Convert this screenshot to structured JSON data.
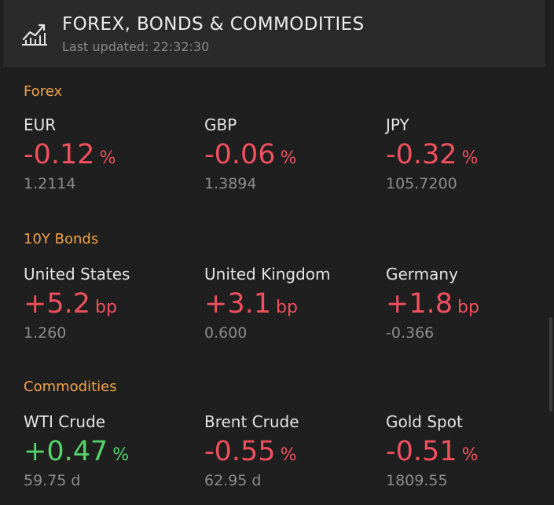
{
  "header": {
    "title": "FOREX, BONDS & COMMODITIES",
    "last_updated": "Last updated: 22:32:30",
    "icon": "line-chart-icon"
  },
  "sections": [
    {
      "title": "Forex",
      "items": [
        {
          "name": "EUR",
          "change": "-0.12",
          "unit": "%",
          "price": "1.2114",
          "direction": "down"
        },
        {
          "name": "GBP",
          "change": "-0.06",
          "unit": "%",
          "price": "1.3894",
          "direction": "down"
        },
        {
          "name": "JPY",
          "change": "-0.32",
          "unit": "%",
          "price": "105.7200",
          "direction": "down"
        }
      ]
    },
    {
      "title": "10Y Bonds",
      "items": [
        {
          "name": "United States",
          "change": "+5.2",
          "unit": "bp",
          "price": "1.260",
          "direction": "down"
        },
        {
          "name": "United Kingdom",
          "change": "+3.1",
          "unit": "bp",
          "price": "0.600",
          "direction": "down"
        },
        {
          "name": "Germany",
          "change": "+1.8",
          "unit": "bp",
          "price": "-0.366",
          "direction": "down"
        }
      ]
    },
    {
      "title": "Commodities",
      "items": [
        {
          "name": "WTI Crude",
          "change": "+0.47",
          "unit": "%",
          "price": "59.75 d",
          "direction": "up"
        },
        {
          "name": "Brent Crude",
          "change": "-0.55",
          "unit": "%",
          "price": "62.95 d",
          "direction": "down"
        },
        {
          "name": "Gold Spot",
          "change": "-0.51",
          "unit": "%",
          "price": "1809.55",
          "direction": "down"
        }
      ]
    }
  ],
  "colors": {
    "header_bg": "#2a2a2a",
    "page_bg": "#1f1f1f",
    "section_title": "#f0a24a",
    "negative": "#f0505e",
    "positive": "#52d46a",
    "muted": "#8c8c8c"
  }
}
